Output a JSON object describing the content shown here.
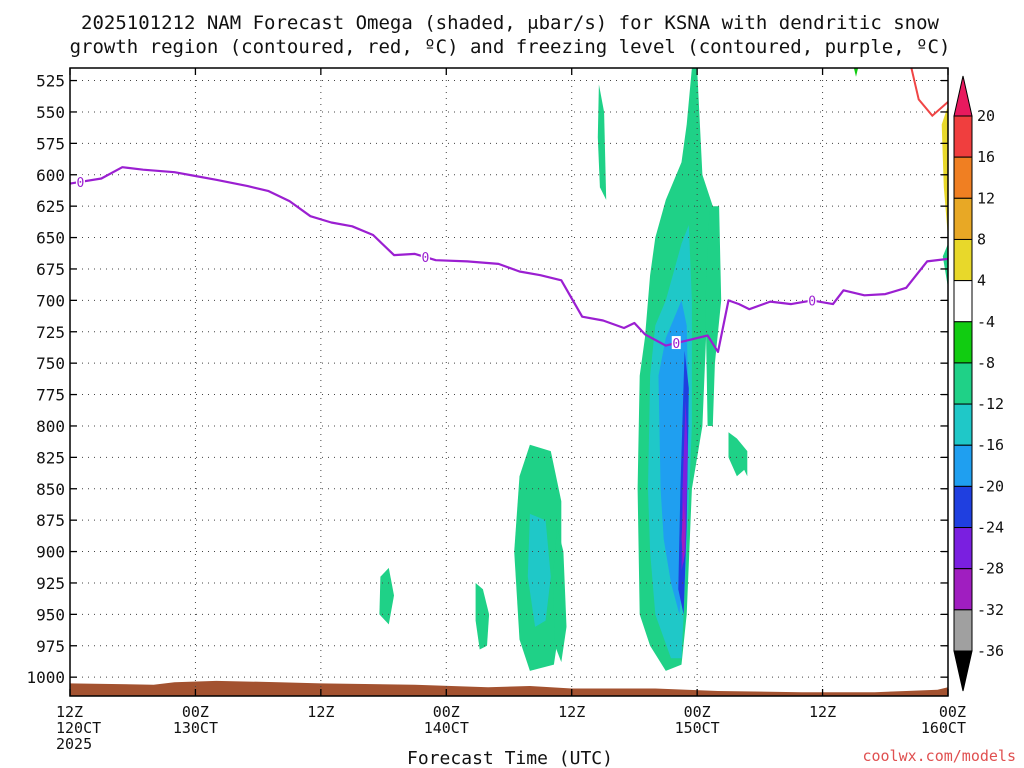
{
  "chart_data": {
    "type": "heatmap",
    "title_lines": [
      "2025101212 NAM Forecast Omega (shaded, μbar/s) for KSNA with dendritic snow",
      "growth region (contoured, red, ºC) and freezing level (contoured, purple, ºC)"
    ],
    "xlabel": "Forecast Time (UTC)",
    "x_ticks": [
      {
        "hour": 0,
        "line1": "12Z",
        "line2": "120CT",
        "line3": "2025"
      },
      {
        "hour": 12,
        "line1": "00Z",
        "line2": "130CT",
        "line3": ""
      },
      {
        "hour": 24,
        "line1": "12Z",
        "line2": "",
        "line3": ""
      },
      {
        "hour": 36,
        "line1": "00Z",
        "line2": "140CT",
        "line3": ""
      },
      {
        "hour": 48,
        "line1": "12Z",
        "line2": "",
        "line3": ""
      },
      {
        "hour": 60,
        "line1": "00Z",
        "line2": "150CT",
        "line3": ""
      },
      {
        "hour": 72,
        "line1": "12Z",
        "line2": "",
        "line3": ""
      },
      {
        "hour": 84,
        "line1": "00Z",
        "line2": "160CT",
        "line3": ""
      }
    ],
    "x_range_hours": [
      0,
      84
    ],
    "y_ticks": [
      525,
      550,
      575,
      600,
      625,
      650,
      675,
      700,
      725,
      750,
      775,
      800,
      825,
      850,
      875,
      900,
      925,
      950,
      975,
      1000
    ],
    "y_range_mb": [
      515,
      1015
    ],
    "grid": true,
    "colorbar": {
      "ticks": [
        20,
        16,
        12,
        8,
        4,
        -4,
        -8,
        -12,
        -16,
        -20,
        -24,
        -28,
        -32,
        -36
      ],
      "colors": [
        "#e8195e",
        "#f03e3e",
        "#f07f22",
        "#e8a825",
        "#e8d82a",
        "#ffffff",
        "#11cc11",
        "#1fd187",
        "#1fc8c8",
        "#1f9ff0",
        "#1f3fe0",
        "#7a1fe0",
        "#a01ec0",
        "#a0a0a0",
        "#000000"
      ]
    },
    "freezing_level": {
      "color": "#9b1fd1",
      "label": "0",
      "points_hour_mb": [
        [
          0,
          607
        ],
        [
          3,
          603
        ],
        [
          5,
          594
        ],
        [
          7,
          596
        ],
        [
          10,
          598
        ],
        [
          12,
          601
        ],
        [
          14,
          604
        ],
        [
          17,
          609
        ],
        [
          19,
          613
        ],
        [
          21,
          621
        ],
        [
          23,
          633
        ],
        [
          25,
          638
        ],
        [
          27,
          641
        ],
        [
          29,
          648
        ],
        [
          31,
          664
        ],
        [
          33,
          663
        ],
        [
          35,
          668
        ],
        [
          38,
          669
        ],
        [
          41,
          671
        ],
        [
          43,
          677
        ],
        [
          45,
          680
        ],
        [
          47,
          684
        ],
        [
          49,
          713
        ],
        [
          51,
          716
        ],
        [
          53,
          722
        ],
        [
          54,
          718
        ],
        [
          55,
          727
        ],
        [
          57,
          736
        ],
        [
          59,
          732
        ],
        [
          61,
          728
        ],
        [
          62,
          741
        ],
        [
          63,
          700
        ],
        [
          64,
          703
        ],
        [
          65,
          707
        ],
        [
          67,
          701
        ],
        [
          69,
          703
        ],
        [
          71,
          700
        ],
        [
          73,
          703
        ],
        [
          74,
          692
        ],
        [
          76,
          696
        ],
        [
          78,
          695
        ],
        [
          80,
          690
        ],
        [
          82,
          669
        ],
        [
          84,
          667
        ]
      ],
      "label_hours": [
        1,
        34,
        58,
        71
      ]
    },
    "dgz_contour": {
      "color": "#f04545",
      "points_hour_mb": [
        [
          80.5,
          515
        ],
        [
          81.2,
          540
        ],
        [
          82.5,
          553
        ],
        [
          84,
          542
        ]
      ]
    },
    "omega_regions": [
      {
        "level": -8,
        "points_hour_mb": [
          [
            55,
            730
          ],
          [
            55.5,
            680
          ],
          [
            56,
            650
          ],
          [
            57,
            620
          ],
          [
            58.5,
            590
          ],
          [
            59,
            560
          ],
          [
            59.5,
            515
          ],
          [
            60,
            515
          ],
          [
            60.5,
            600
          ],
          [
            61.5,
            625
          ],
          [
            61,
            700
          ],
          [
            60.5,
            800
          ],
          [
            59.5,
            850
          ],
          [
            59,
            950
          ],
          [
            58.5,
            990
          ],
          [
            57,
            995
          ],
          [
            55.5,
            975
          ],
          [
            54.5,
            950
          ],
          [
            54.3,
            850
          ],
          [
            54.5,
            760
          ]
        ]
      },
      {
        "level": -12,
        "points_hour_mb": [
          [
            55.5,
            760
          ],
          [
            56,
            720
          ],
          [
            57,
            700
          ],
          [
            58.5,
            655
          ],
          [
            59.2,
            640
          ],
          [
            59.5,
            700
          ],
          [
            59.5,
            800
          ],
          [
            59,
            900
          ],
          [
            58.5,
            985
          ],
          [
            57.5,
            985
          ],
          [
            56,
            950
          ],
          [
            55.5,
            900
          ],
          [
            55.3,
            850
          ]
        ]
      },
      {
        "level": -16,
        "points_hour_mb": [
          [
            56.3,
            760
          ],
          [
            57,
            730
          ],
          [
            58.5,
            700
          ],
          [
            59,
            720
          ],
          [
            59.2,
            800
          ],
          [
            58.8,
            900
          ],
          [
            58.3,
            950
          ],
          [
            57.5,
            925
          ],
          [
            56.8,
            890
          ],
          [
            56.5,
            850
          ]
        ]
      },
      {
        "level": -20,
        "points_hour_mb": [
          [
            58.8,
            740
          ],
          [
            59.2,
            770
          ],
          [
            59,
            880
          ],
          [
            58.7,
            950
          ],
          [
            58.2,
            930
          ],
          [
            58.4,
            850
          ]
        ]
      },
      {
        "level": -24,
        "points_hour_mb": [
          [
            58.9,
            780
          ],
          [
            59.1,
            820
          ],
          [
            58.9,
            900
          ],
          [
            58.5,
            915
          ],
          [
            58.6,
            850
          ]
        ]
      },
      {
        "level": -28,
        "points_hour_mb": [
          [
            58.7,
            860
          ],
          [
            58.9,
            880
          ],
          [
            58.7,
            910
          ],
          [
            58.5,
            890
          ]
        ]
      },
      {
        "level": -8,
        "points_hour_mb": [
          [
            43,
            840
          ],
          [
            44,
            815
          ],
          [
            46,
            820
          ],
          [
            47,
            860
          ],
          [
            47,
            950
          ],
          [
            46.3,
            990
          ],
          [
            44,
            995
          ],
          [
            43,
            970
          ],
          [
            42.5,
            900
          ]
        ]
      },
      {
        "level": -12,
        "points_hour_mb": [
          [
            44,
            870
          ],
          [
            45.5,
            875
          ],
          [
            46,
            920
          ],
          [
            45.5,
            955
          ],
          [
            44.5,
            960
          ],
          [
            43.8,
            920
          ]
        ]
      },
      {
        "level": -8,
        "points_hour_mb": [
          [
            46.6,
            880
          ],
          [
            47.2,
            900
          ],
          [
            47.5,
            960
          ],
          [
            47,
            988
          ],
          [
            46.4,
            975
          ],
          [
            46.2,
            920
          ]
        ]
      },
      {
        "level": -8,
        "points_hour_mb": [
          [
            50.6,
            528
          ],
          [
            51.1,
            550
          ],
          [
            51.3,
            620
          ],
          [
            50.7,
            610
          ],
          [
            50.5,
            570
          ]
        ]
      },
      {
        "level": -8,
        "points_hour_mb": [
          [
            61.2,
            625
          ],
          [
            62.1,
            625
          ],
          [
            62.3,
            700
          ],
          [
            61.7,
            750
          ],
          [
            61.5,
            800
          ],
          [
            61,
            800
          ],
          [
            60.8,
            700
          ]
        ]
      },
      {
        "level": -8,
        "points_hour_mb": [
          [
            29.7,
            920
          ],
          [
            30.5,
            913
          ],
          [
            31,
            935
          ],
          [
            30.5,
            958
          ],
          [
            29.6,
            950
          ]
        ]
      },
      {
        "level": -8,
        "points_hour_mb": [
          [
            38.8,
            925
          ],
          [
            39.5,
            930
          ],
          [
            40.1,
            950
          ],
          [
            39.9,
            975
          ],
          [
            39.2,
            978
          ],
          [
            38.8,
            955
          ]
        ]
      },
      {
        "level": -8,
        "points_hour_mb": [
          [
            63,
            805
          ],
          [
            63.8,
            810
          ],
          [
            64.8,
            820
          ],
          [
            64.8,
            840
          ],
          [
            64.5,
            835
          ],
          [
            63.8,
            840
          ],
          [
            63,
            825
          ]
        ]
      },
      {
        "level": 4,
        "points_hour_mb": [
          [
            83.4,
            560
          ],
          [
            84,
            545
          ],
          [
            84,
            650
          ],
          [
            83.6,
            610
          ]
        ]
      },
      {
        "level": -8,
        "points_hour_mb": [
          [
            83.5,
            665
          ],
          [
            84,
            655
          ],
          [
            84,
            690
          ]
        ]
      },
      {
        "level": -4,
        "points_hour_mb": [
          [
            75,
            515
          ],
          [
            75.4,
            515
          ],
          [
            75.2,
            522
          ]
        ]
      }
    ],
    "terrain": {
      "color": "#a35230",
      "top_hour_mb": [
        [
          0,
          1005
        ],
        [
          8,
          1006
        ],
        [
          10,
          1004
        ],
        [
          14,
          1003
        ],
        [
          20,
          1004
        ],
        [
          24,
          1005
        ],
        [
          33,
          1006
        ],
        [
          40,
          1008
        ],
        [
          44,
          1007
        ],
        [
          48,
          1009
        ],
        [
          56,
          1009
        ],
        [
          62,
          1011
        ],
        [
          70,
          1012
        ],
        [
          77,
          1012
        ],
        [
          80,
          1011
        ],
        [
          83,
          1010
        ],
        [
          84,
          1008
        ]
      ],
      "bottom_mb": 1019
    }
  },
  "footer": {
    "credit": "coolwx.com/models"
  }
}
